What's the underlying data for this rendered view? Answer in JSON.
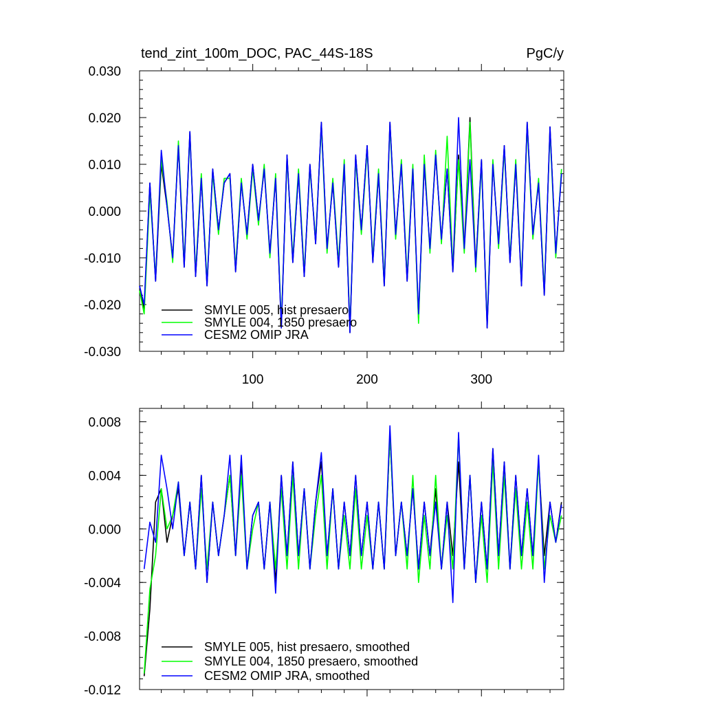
{
  "chart_data": [
    {
      "type": "line",
      "title": "tend_zint_100m_DOC, PAC_44S-18S",
      "units": "PgC/y",
      "xlim": [
        1,
        372
      ],
      "ylim": [
        -0.03,
        0.03
      ],
      "xticks": [
        100,
        200,
        300
      ],
      "xtick_labels": [
        "100",
        "200",
        "300"
      ],
      "yticks": [
        -0.03,
        -0.02,
        -0.01,
        0.0,
        0.01,
        0.02,
        0.03
      ],
      "ytick_labels": [
        "-0.030",
        "-0.020",
        "-0.010",
        "0.000",
        "0.010",
        "0.020",
        "0.030"
      ],
      "legend_position": "lower-left",
      "series": [
        {
          "name": "SMYLE 005, hist presaero",
          "color": "#000000",
          "x": [
            1,
            5,
            10,
            15,
            20,
            25,
            30,
            35,
            40,
            45,
            50,
            55,
            60,
            65,
            70,
            75,
            80,
            85,
            90,
            95,
            100,
            105,
            110,
            115,
            120,
            125,
            130,
            135,
            140,
            145,
            150,
            155,
            160,
            165,
            170,
            175,
            180,
            185,
            190,
            195,
            200,
            205,
            210,
            215,
            220,
            225,
            230,
            235,
            240,
            245,
            250,
            255,
            260,
            265,
            270,
            275,
            280,
            285,
            290,
            295,
            300,
            305,
            310,
            315,
            320,
            325,
            330,
            335,
            340,
            345,
            350,
            355,
            360,
            365,
            370
          ],
          "values": [
            -0.016,
            -0.021,
            0.006,
            -0.015,
            0.01,
            0.001,
            -0.01,
            0.014,
            -0.012,
            0.017,
            -0.014,
            0.007,
            -0.016,
            0.009,
            -0.004,
            0.006,
            0.008,
            -0.013,
            0.006,
            -0.005,
            0.01,
            -0.002,
            0.009,
            -0.009,
            0.007,
            -0.025,
            0.012,
            -0.011,
            0.008,
            -0.014,
            0.01,
            -0.007,
            0.019,
            -0.008,
            0.006,
            -0.012,
            0.01,
            -0.026,
            0.012,
            -0.004,
            0.014,
            -0.011,
            0.008,
            -0.016,
            0.019,
            -0.005,
            0.01,
            -0.015,
            0.009,
            -0.023,
            0.01,
            -0.008,
            0.012,
            -0.006,
            0.009,
            -0.013,
            0.012,
            -0.008,
            0.02,
            -0.012,
            0.011,
            -0.025,
            0.01,
            -0.007,
            0.014,
            -0.011,
            0.01,
            -0.016,
            0.019,
            -0.005,
            0.006,
            -0.018,
            0.018,
            -0.009,
            0.008
          ]
        },
        {
          "name": "SMYLE 004, 1850 presaero",
          "color": "#00ff00",
          "x": [
            1,
            5,
            10,
            15,
            20,
            25,
            30,
            35,
            40,
            45,
            50,
            55,
            60,
            65,
            70,
            75,
            80,
            85,
            90,
            95,
            100,
            105,
            110,
            115,
            120,
            125,
            130,
            135,
            140,
            145,
            150,
            155,
            160,
            165,
            170,
            175,
            180,
            185,
            190,
            195,
            200,
            205,
            210,
            215,
            220,
            225,
            230,
            235,
            240,
            245,
            250,
            255,
            260,
            265,
            270,
            275,
            280,
            285,
            290,
            295,
            300,
            305,
            310,
            315,
            320,
            325,
            330,
            335,
            340,
            345,
            350,
            355,
            360,
            365,
            370
          ],
          "values": [
            -0.017,
            -0.022,
            0.004,
            -0.014,
            0.011,
            0.002,
            -0.011,
            0.015,
            -0.011,
            0.016,
            -0.013,
            0.008,
            -0.015,
            0.008,
            -0.005,
            0.007,
            0.007,
            -0.012,
            0.007,
            -0.006,
            0.009,
            -0.003,
            0.01,
            -0.01,
            0.008,
            -0.024,
            0.011,
            -0.01,
            0.009,
            -0.013,
            0.009,
            -0.006,
            0.018,
            -0.009,
            0.007,
            -0.011,
            0.011,
            -0.025,
            0.011,
            -0.005,
            0.013,
            -0.01,
            0.009,
            -0.015,
            0.018,
            -0.006,
            0.011,
            -0.014,
            0.01,
            -0.024,
            0.012,
            -0.009,
            0.013,
            -0.007,
            0.016,
            -0.012,
            0.011,
            -0.009,
            0.019,
            -0.013,
            0.01,
            -0.024,
            0.011,
            -0.008,
            0.013,
            -0.01,
            0.011,
            -0.015,
            0.018,
            -0.006,
            0.007,
            -0.017,
            0.017,
            -0.01,
            0.009
          ]
        },
        {
          "name": "CESM2 OMIP JRA",
          "color": "#0000ff",
          "x": [
            1,
            5,
            10,
            15,
            20,
            25,
            30,
            35,
            40,
            45,
            50,
            55,
            60,
            65,
            70,
            75,
            80,
            85,
            90,
            95,
            100,
            105,
            110,
            115,
            120,
            125,
            130,
            135,
            140,
            145,
            150,
            155,
            160,
            165,
            170,
            175,
            180,
            185,
            190,
            195,
            200,
            205,
            210,
            215,
            220,
            225,
            230,
            235,
            240,
            245,
            250,
            255,
            260,
            265,
            270,
            275,
            280,
            285,
            290,
            295,
            300,
            305,
            310,
            315,
            320,
            325,
            330,
            335,
            340,
            345,
            350,
            355,
            360,
            365,
            370
          ],
          "values": [
            -0.016,
            -0.02,
            0.006,
            -0.015,
            0.013,
            0.001,
            -0.01,
            0.014,
            -0.012,
            0.017,
            -0.014,
            0.007,
            -0.016,
            0.009,
            -0.004,
            0.006,
            0.008,
            -0.013,
            0.006,
            -0.005,
            0.01,
            -0.002,
            0.009,
            -0.009,
            0.007,
            -0.025,
            0.012,
            -0.011,
            0.008,
            -0.014,
            0.01,
            -0.007,
            0.019,
            -0.008,
            0.006,
            -0.012,
            0.01,
            -0.026,
            0.012,
            -0.004,
            0.014,
            -0.011,
            0.008,
            -0.016,
            0.019,
            -0.005,
            0.01,
            -0.015,
            0.009,
            -0.022,
            0.01,
            -0.008,
            0.012,
            -0.006,
            0.009,
            -0.013,
            0.02,
            -0.008,
            0.011,
            -0.012,
            0.011,
            -0.025,
            0.01,
            -0.007,
            0.014,
            -0.011,
            0.01,
            -0.016,
            0.019,
            -0.005,
            0.006,
            -0.018,
            0.018,
            -0.009,
            0.008
          ]
        }
      ]
    },
    {
      "type": "line",
      "title": "",
      "xlim": [
        1,
        372
      ],
      "ylim": [
        -0.012,
        0.009
      ],
      "xticks": [
        100,
        200,
        300
      ],
      "yticks": [
        -0.012,
        -0.008,
        -0.004,
        0.0,
        0.004,
        0.008
      ],
      "ytick_labels": [
        "-0.012",
        "-0.008",
        "-0.004",
        "0.000",
        "0.004",
        "0.008"
      ],
      "legend_position": "lower-left",
      "series": [
        {
          "name": "SMYLE 005, hist presaero, smoothed",
          "color": "#000000",
          "x": [
            5,
            10,
            15,
            20,
            25,
            30,
            35,
            40,
            45,
            50,
            55,
            60,
            65,
            70,
            75,
            80,
            85,
            90,
            95,
            100,
            105,
            110,
            115,
            120,
            125,
            130,
            135,
            140,
            145,
            150,
            155,
            160,
            165,
            170,
            175,
            180,
            185,
            190,
            195,
            200,
            205,
            210,
            215,
            220,
            225,
            230,
            235,
            240,
            245,
            250,
            255,
            260,
            265,
            270,
            275,
            280,
            285,
            290,
            295,
            300,
            305,
            310,
            315,
            320,
            325,
            330,
            335,
            340,
            345,
            350,
            355,
            360,
            365,
            370
          ],
          "values": [
            -0.011,
            -0.006,
            0.002,
            0.003,
            -0.001,
            0.001,
            0.003,
            -0.002,
            0.002,
            -0.003,
            0.004,
            -0.004,
            0.002,
            -0.002,
            0.001,
            0.004,
            -0.002,
            0.005,
            -0.003,
            0.001,
            0.002,
            -0.003,
            0.002,
            -0.004,
            0.004,
            -0.002,
            0.005,
            -0.002,
            0.003,
            -0.003,
            0.002,
            0.005,
            -0.002,
            0.003,
            -0.003,
            0.002,
            -0.002,
            0.004,
            -0.002,
            0.002,
            -0.003,
            0.002,
            -0.003,
            0.007,
            -0.002,
            0.002,
            -0.002,
            0.003,
            -0.003,
            0.002,
            -0.002,
            0.003,
            -0.003,
            0.002,
            -0.002,
            0.005,
            -0.003,
            0.004,
            -0.004,
            0.002,
            -0.003,
            0.006,
            -0.002,
            0.005,
            -0.003,
            0.004,
            -0.002,
            0.003,
            -0.002,
            0.005,
            -0.002,
            0.002,
            -0.001,
            0.002
          ]
        },
        {
          "name": "SMYLE 004, 1850 presaero, smoothed",
          "color": "#00ff00",
          "x": [
            5,
            10,
            15,
            20,
            25,
            30,
            35,
            40,
            45,
            50,
            55,
            60,
            65,
            70,
            75,
            80,
            85,
            90,
            95,
            100,
            105,
            110,
            115,
            120,
            125,
            130,
            135,
            140,
            145,
            150,
            155,
            160,
            165,
            170,
            175,
            180,
            185,
            190,
            195,
            200,
            205,
            210,
            215,
            220,
            225,
            230,
            235,
            240,
            245,
            250,
            255,
            260,
            265,
            270,
            275,
            280,
            285,
            290,
            295,
            300,
            305,
            310,
            315,
            320,
            325,
            330,
            335,
            340,
            345,
            350,
            355,
            360,
            365,
            370
          ],
          "values": [
            -0.0108,
            -0.0045,
            -0.002,
            0.003,
            0.0,
            0.001,
            0.0035,
            -0.002,
            0.002,
            -0.003,
            0.003,
            -0.003,
            0.002,
            -0.002,
            0.001,
            0.004,
            -0.002,
            0.004,
            -0.003,
            0.0,
            0.002,
            -0.003,
            0.002,
            -0.003,
            0.003,
            -0.003,
            0.004,
            -0.003,
            0.003,
            -0.003,
            0.001,
            0.004,
            -0.003,
            0.003,
            -0.003,
            0.001,
            -0.003,
            0.003,
            -0.003,
            0.001,
            -0.003,
            0.002,
            -0.003,
            0.007,
            -0.002,
            0.002,
            -0.003,
            0.004,
            -0.004,
            0.001,
            -0.003,
            0.004,
            -0.003,
            0.001,
            -0.003,
            0.007,
            -0.003,
            0.004,
            -0.004,
            0.001,
            -0.004,
            0.005,
            -0.003,
            0.004,
            -0.003,
            0.003,
            -0.003,
            0.002,
            -0.003,
            0.005,
            -0.003,
            0.001,
            -0.001,
            0.001
          ]
        },
        {
          "name": "CESM2 OMIP JRA, smoothed",
          "color": "#0000ff",
          "x": [
            5,
            10,
            15,
            20,
            25,
            30,
            35,
            40,
            45,
            50,
            55,
            60,
            65,
            70,
            75,
            80,
            85,
            90,
            95,
            100,
            105,
            110,
            115,
            120,
            125,
            130,
            135,
            140,
            145,
            150,
            155,
            160,
            165,
            170,
            175,
            180,
            185,
            190,
            195,
            200,
            205,
            210,
            215,
            220,
            225,
            230,
            235,
            240,
            245,
            250,
            255,
            260,
            265,
            270,
            275,
            280,
            285,
            290,
            295,
            300,
            305,
            310,
            315,
            320,
            325,
            330,
            335,
            340,
            345,
            350,
            355,
            360,
            365,
            370
          ],
          "values": [
            -0.003,
            0.0005,
            -0.001,
            0.0055,
            0.003,
            0.0,
            0.0035,
            -0.002,
            0.002,
            -0.003,
            0.004,
            -0.004,
            0.002,
            -0.002,
            0.001,
            0.0055,
            -0.002,
            0.0055,
            -0.003,
            0.001,
            0.002,
            -0.003,
            0.002,
            -0.0048,
            0.004,
            -0.002,
            0.005,
            -0.002,
            0.003,
            -0.003,
            0.002,
            0.0057,
            -0.002,
            0.003,
            -0.003,
            0.002,
            -0.002,
            0.004,
            -0.002,
            0.002,
            -0.003,
            0.002,
            -0.003,
            0.0077,
            -0.002,
            0.002,
            -0.002,
            0.003,
            -0.003,
            0.002,
            -0.002,
            0.002,
            -0.003,
            0.002,
            -0.0055,
            0.0072,
            -0.003,
            0.004,
            -0.004,
            0.002,
            -0.003,
            0.006,
            -0.002,
            0.005,
            -0.003,
            0.004,
            -0.002,
            0.003,
            -0.002,
            0.0055,
            -0.004,
            0.002,
            -0.001,
            0.0018
          ]
        }
      ]
    }
  ]
}
